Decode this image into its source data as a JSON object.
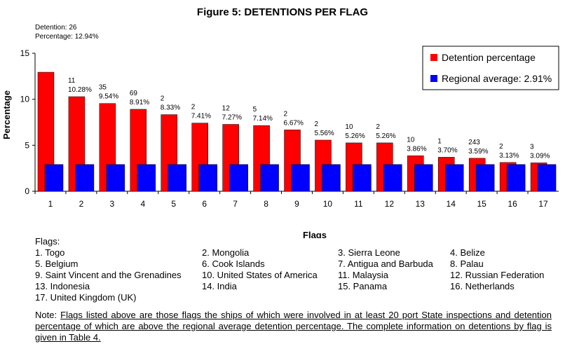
{
  "chart_data": {
    "type": "bar",
    "title": "Figure 5: DETENTIONS PER FLAG",
    "summary": {
      "detention": "Detention: 26",
      "percentage": "Percentage: 12.94%"
    },
    "xlabel": "Flags",
    "ylabel": "Percentage",
    "ylim": [
      0,
      15
    ],
    "yticks": [
      0,
      5,
      10,
      15
    ],
    "categories": [
      "1",
      "2",
      "3",
      "4",
      "5",
      "6",
      "7",
      "8",
      "9",
      "10",
      "11",
      "12",
      "13",
      "14",
      "15",
      "16",
      "17"
    ],
    "series": [
      {
        "name": "Detention percentage",
        "color": "#ff0000",
        "values": [
          12.94,
          10.28,
          9.54,
          8.91,
          8.33,
          7.41,
          7.27,
          7.14,
          6.67,
          5.56,
          5.26,
          5.26,
          3.86,
          3.7,
          3.59,
          3.13,
          3.09
        ]
      },
      {
        "name": "Regional average: 2.91%",
        "color": "#0000ff",
        "values": [
          2.91,
          2.91,
          2.91,
          2.91,
          2.91,
          2.91,
          2.91,
          2.91,
          2.91,
          2.91,
          2.91,
          2.91,
          2.91,
          2.91,
          2.91,
          2.91,
          2.91
        ]
      }
    ],
    "detention_labels": [
      "",
      "11",
      "35",
      "69",
      "2",
      "2",
      "12",
      "5",
      "2",
      "2",
      "10",
      "2",
      "10",
      "1",
      "243",
      "2",
      "3"
    ],
    "percent_labels": [
      "",
      "10.28%",
      "9.54%",
      "8.91%",
      "8.33%",
      "7.41%",
      "7.27%",
      "7.14%",
      "6.67%",
      "5.56%",
      "5.26%",
      "5.26%",
      "3.86%",
      "3.70%",
      "3.59%",
      "3.13%",
      "3.09%"
    ],
    "legend_position": "top-right",
    "grid": false
  },
  "flags": {
    "heading": "Flags:",
    "items": [
      "1.  Togo",
      "2.  Mongolia",
      "3.  Sierra Leone",
      "4.  Belize",
      "5.  Belgium",
      "6.  Cook Islands",
      "7.  Antigua and Barbuda",
      "8.  Palau",
      "9.  Saint Vincent and the Grenadines",
      "10. United States of America",
      "11. Malaysia",
      "12. Russian Federation",
      "13. Indonesia",
      "14. India",
      "15. Panama",
      "16. Netherlands",
      "17. United Kingdom (UK)"
    ]
  },
  "note": {
    "prefix": "Note: ",
    "text": "Flags listed above are those flags the ships of which were involved in at least 20 port State inspections and detention percentage of which are above the regional average detention percentage. The complete information on detentions by flag is given in Table 4."
  }
}
